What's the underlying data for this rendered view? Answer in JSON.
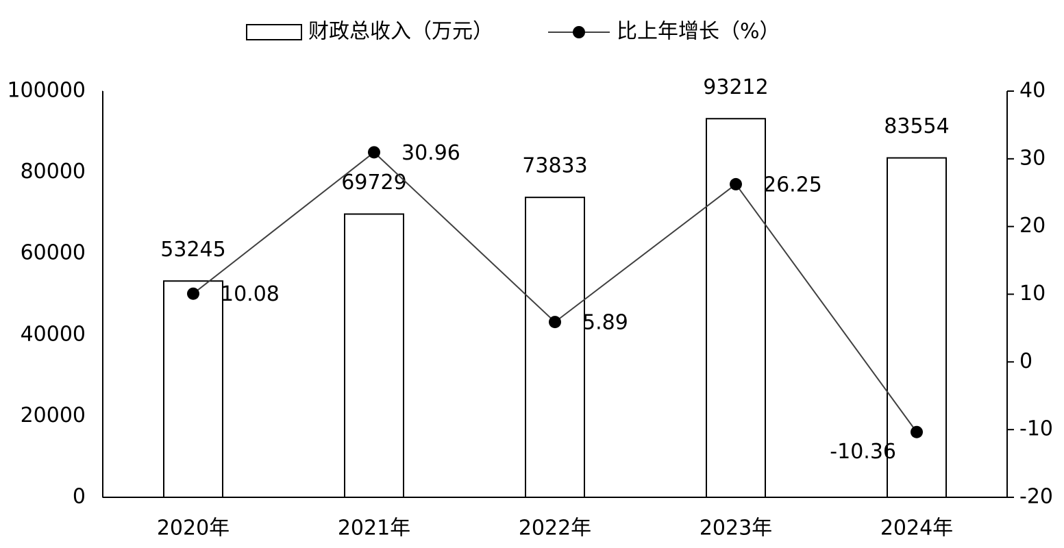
{
  "chart_data": {
    "type": "bar",
    "categories": [
      "2020年",
      "2021年",
      "2022年",
      "2023年",
      "2024年"
    ],
    "series": [
      {
        "name": "财政总收入（万元）",
        "type": "bar",
        "color": "#ffffff",
        "values": [
          53245,
          69729,
          73833,
          93212,
          83554
        ]
      },
      {
        "name": "比上年增长（%）",
        "type": "line",
        "axis": "y2",
        "color": "#404040",
        "values": [
          10.08,
          30.96,
          5.89,
          26.25,
          -10.36
        ]
      }
    ],
    "ylim": [
      0,
      100000
    ],
    "yticks": [
      0,
      20000,
      40000,
      60000,
      80000,
      100000
    ],
    "y2lim": [
      -20,
      40
    ],
    "y2ticks": [
      -20,
      -10,
      0,
      10,
      20,
      30,
      40
    ],
    "legend": "top"
  }
}
